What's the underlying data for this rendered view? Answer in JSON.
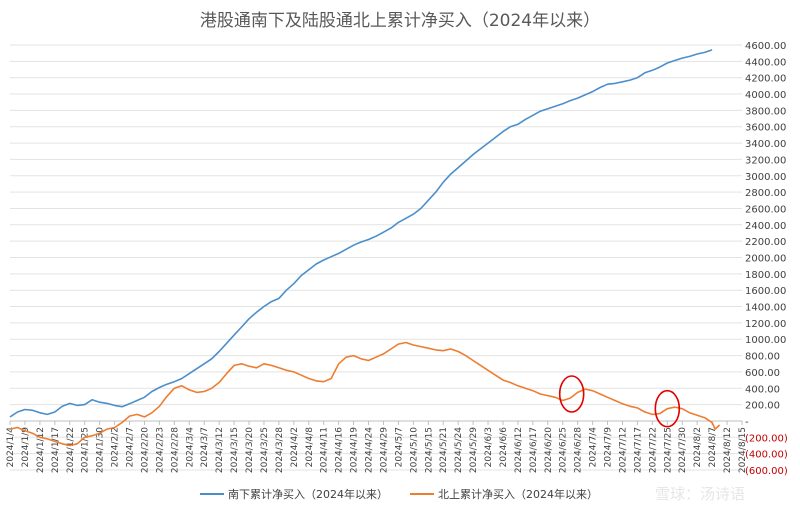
{
  "chart_data": {
    "type": "line",
    "title": "港股通南下及陆股通北上累计净买入（2024年以来）",
    "ylim": [
      -600,
      4600
    ],
    "y_ticks": [
      4600,
      4400,
      4200,
      4000,
      3800,
      3600,
      3400,
      3200,
      3000,
      2800,
      2600,
      2400,
      2200,
      2000,
      1800,
      1600,
      1400,
      1200,
      1000,
      800,
      600,
      400,
      200,
      0,
      -200,
      -400,
      -600
    ],
    "y_tick_labels": [
      "4600.00",
      "4400.00",
      "4200.00",
      "4000.00",
      "3800.00",
      "3600.00",
      "3400.00",
      "3200.00",
      "3000.00",
      "2800.00",
      "2600.00",
      "2400.00",
      "2200.00",
      "2000.00",
      "1800.00",
      "1600.00",
      "1400.00",
      "1200.00",
      "1000.00",
      "800.00",
      "600.00",
      "400.00",
      "200.00",
      "-",
      "(200.00)",
      "(400.00)",
      "(600.00)"
    ],
    "x_tick_labels": [
      "2024/1/4",
      "2024/1/9",
      "2024/1/12",
      "2024/1/17",
      "2024/1/22",
      "2024/1/25",
      "2024/1/30",
      "2024/2/2",
      "2024/2/7",
      "2024/2/20",
      "2024/2/23",
      "2024/2/28",
      "2024/3/4",
      "2024/3/7",
      "2024/3/12",
      "2024/3/15",
      "2024/3/20",
      "2024/3/25",
      "2024/3/28",
      "2024/4/2",
      "2024/4/8",
      "2024/4/11",
      "2024/4/16",
      "2024/4/19",
      "2024/4/24",
      "2024/4/29",
      "2024/5/7",
      "2024/5/10",
      "2024/5/15",
      "2024/5/21",
      "2024/5/24",
      "2024/5/29",
      "2024/6/3",
      "2024/6/6",
      "2024/6/12",
      "2024/6/17",
      "2024/6/20",
      "2024/6/25",
      "2024/6/28",
      "2024/7/4",
      "2024/7/9",
      "2024/7/12",
      "2024/7/17",
      "2024/7/22",
      "2024/7/25",
      "2024/7/30",
      "2024/8/2",
      "2024/8/7",
      "2024/8/12",
      "2024/8/15"
    ],
    "grid": true,
    "legend_position": "bottom",
    "series": [
      {
        "name": "南下累计净买入（2024年以来）",
        "color": "#4a8fcc",
        "points": [
          [
            0,
            50
          ],
          [
            0.5,
            110
          ],
          [
            1,
            140
          ],
          [
            1.5,
            130
          ],
          [
            2,
            100
          ],
          [
            2.5,
            80
          ],
          [
            3,
            110
          ],
          [
            3.5,
            180
          ],
          [
            4,
            215
          ],
          [
            4.5,
            190
          ],
          [
            5,
            200
          ],
          [
            5.5,
            260
          ],
          [
            6,
            230
          ],
          [
            6.5,
            215
          ],
          [
            7,
            190
          ],
          [
            7.5,
            175
          ],
          [
            8,
            210
          ],
          [
            8.5,
            250
          ],
          [
            9,
            290
          ],
          [
            9.5,
            360
          ],
          [
            10,
            410
          ],
          [
            10.5,
            450
          ],
          [
            11,
            480
          ],
          [
            11.5,
            520
          ],
          [
            12,
            580
          ],
          [
            12.5,
            640
          ],
          [
            13,
            700
          ],
          [
            13.5,
            760
          ],
          [
            14,
            850
          ],
          [
            14.5,
            950
          ],
          [
            15,
            1050
          ],
          [
            15.5,
            1150
          ],
          [
            16,
            1250
          ],
          [
            16.5,
            1330
          ],
          [
            17,
            1400
          ],
          [
            17.5,
            1460
          ],
          [
            18,
            1500
          ],
          [
            18.5,
            1600
          ],
          [
            19,
            1680
          ],
          [
            19.5,
            1780
          ],
          [
            20,
            1850
          ],
          [
            20.5,
            1920
          ],
          [
            21,
            1970
          ],
          [
            21.5,
            2010
          ],
          [
            22,
            2050
          ],
          [
            22.5,
            2100
          ],
          [
            23,
            2150
          ],
          [
            23.5,
            2190
          ],
          [
            24,
            2220
          ],
          [
            24.5,
            2260
          ],
          [
            25,
            2310
          ],
          [
            25.5,
            2360
          ],
          [
            26,
            2430
          ],
          [
            26.5,
            2480
          ],
          [
            27,
            2530
          ],
          [
            27.5,
            2600
          ],
          [
            28,
            2700
          ],
          [
            28.5,
            2800
          ],
          [
            29,
            2920
          ],
          [
            29.5,
            3020
          ],
          [
            30,
            3100
          ],
          [
            30.5,
            3180
          ],
          [
            31,
            3260
          ],
          [
            31.5,
            3330
          ],
          [
            32,
            3400
          ],
          [
            32.5,
            3470
          ],
          [
            33,
            3540
          ],
          [
            33.5,
            3600
          ],
          [
            34,
            3630
          ],
          [
            34.5,
            3690
          ],
          [
            35,
            3740
          ],
          [
            35.5,
            3790
          ],
          [
            36,
            3820
          ],
          [
            36.5,
            3850
          ],
          [
            37,
            3880
          ],
          [
            37.5,
            3920
          ],
          [
            38,
            3950
          ],
          [
            38.5,
            3990
          ],
          [
            39,
            4030
          ],
          [
            39.5,
            4080
          ],
          [
            40,
            4120
          ],
          [
            40.5,
            4130
          ],
          [
            41,
            4150
          ],
          [
            41.5,
            4170
          ],
          [
            42,
            4200
          ],
          [
            42.5,
            4260
          ],
          [
            43,
            4290
          ],
          [
            43.5,
            4330
          ],
          [
            44,
            4380
          ],
          [
            44.5,
            4410
          ],
          [
            45,
            4440
          ],
          [
            45.5,
            4460
          ],
          [
            46,
            4490
          ],
          [
            46.5,
            4510
          ],
          [
            47,
            4540
          ]
        ]
      },
      {
        "name": "北上累计净买入（2024年以来）",
        "color": "#ed7d31",
        "points": [
          [
            0,
            -100
          ],
          [
            0.5,
            -80
          ],
          [
            1,
            -120
          ],
          [
            1.5,
            -150
          ],
          [
            2,
            -200
          ],
          [
            2.5,
            -220
          ],
          [
            3,
            -250
          ],
          [
            3.5,
            -280
          ],
          [
            4,
            -300
          ],
          [
            4.5,
            -280
          ],
          [
            5,
            -200
          ],
          [
            5.5,
            -180
          ],
          [
            6,
            -150
          ],
          [
            6.5,
            -100
          ],
          [
            7,
            -80
          ],
          [
            7.5,
            -20
          ],
          [
            8,
            60
          ],
          [
            8.5,
            80
          ],
          [
            9,
            50
          ],
          [
            9.5,
            100
          ],
          [
            10,
            180
          ],
          [
            10.5,
            300
          ],
          [
            11,
            400
          ],
          [
            11.5,
            430
          ],
          [
            12,
            380
          ],
          [
            12.5,
            350
          ],
          [
            13,
            360
          ],
          [
            13.5,
            400
          ],
          [
            14,
            470
          ],
          [
            14.5,
            580
          ],
          [
            15,
            680
          ],
          [
            15.5,
            700
          ],
          [
            16,
            670
          ],
          [
            16.5,
            650
          ],
          [
            17,
            700
          ],
          [
            17.5,
            680
          ],
          [
            18,
            650
          ],
          [
            18.5,
            620
          ],
          [
            19,
            600
          ],
          [
            19.5,
            560
          ],
          [
            20,
            520
          ],
          [
            20.5,
            490
          ],
          [
            21,
            480
          ],
          [
            21.5,
            520
          ],
          [
            22,
            700
          ],
          [
            22.5,
            780
          ],
          [
            23,
            800
          ],
          [
            23.5,
            760
          ],
          [
            24,
            740
          ],
          [
            24.5,
            780
          ],
          [
            25,
            820
          ],
          [
            25.5,
            880
          ],
          [
            26,
            940
          ],
          [
            26.5,
            960
          ],
          [
            27,
            930
          ],
          [
            27.5,
            910
          ],
          [
            28,
            890
          ],
          [
            28.5,
            870
          ],
          [
            29,
            860
          ],
          [
            29.5,
            880
          ],
          [
            30,
            850
          ],
          [
            30.5,
            800
          ],
          [
            31,
            740
          ],
          [
            31.5,
            680
          ],
          [
            32,
            620
          ],
          [
            32.5,
            560
          ],
          [
            33,
            500
          ],
          [
            33.5,
            470
          ],
          [
            34,
            430
          ],
          [
            34.5,
            400
          ],
          [
            35,
            370
          ],
          [
            35.5,
            330
          ],
          [
            36,
            310
          ],
          [
            36.5,
            290
          ],
          [
            37,
            250
          ],
          [
            37.5,
            280
          ],
          [
            38,
            350
          ],
          [
            38.5,
            390
          ],
          [
            39,
            370
          ],
          [
            39.5,
            330
          ],
          [
            40,
            290
          ],
          [
            40.5,
            250
          ],
          [
            41,
            210
          ],
          [
            41.5,
            180
          ],
          [
            42,
            160
          ],
          [
            42.5,
            110
          ],
          [
            43,
            80
          ],
          [
            43.5,
            90
          ],
          [
            44,
            150
          ],
          [
            44.5,
            170
          ],
          [
            45,
            150
          ],
          [
            45.5,
            100
          ],
          [
            46,
            70
          ],
          [
            46.5,
            40
          ],
          [
            47,
            -20
          ],
          [
            47.2,
            -100
          ],
          [
            47.5,
            -50
          ]
        ]
      }
    ]
  },
  "watermark": "雪球：汤诗语"
}
